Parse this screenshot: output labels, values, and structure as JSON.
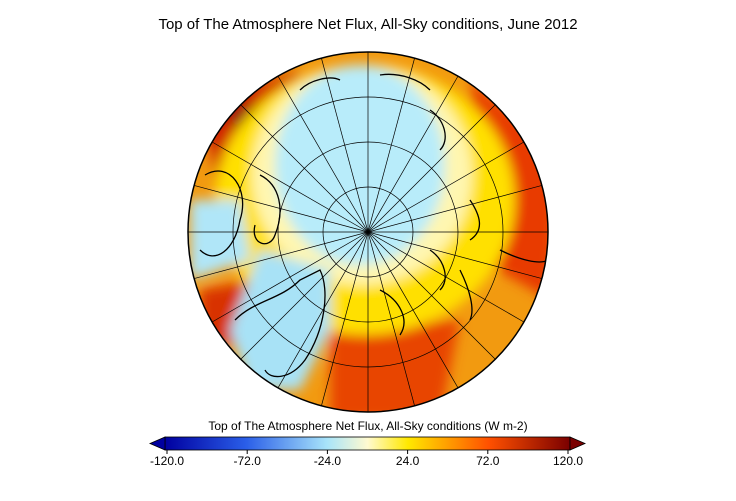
{
  "title": "Top of The Atmosphere Net Flux, All-Sky conditions, June 2012",
  "colorbar": {
    "label": "Top of The Atmosphere Net Flux, All-Sky conditions (W m-2)",
    "ticks": [
      {
        "value": -120,
        "label": "-120.0"
      },
      {
        "value": -72,
        "label": "-72.0"
      },
      {
        "value": -24,
        "label": "-24.0"
      },
      {
        "value": 24,
        "label": "24.0"
      },
      {
        "value": 72,
        "label": "72.0"
      },
      {
        "value": 120,
        "label": "120.0"
      }
    ]
  }
}
